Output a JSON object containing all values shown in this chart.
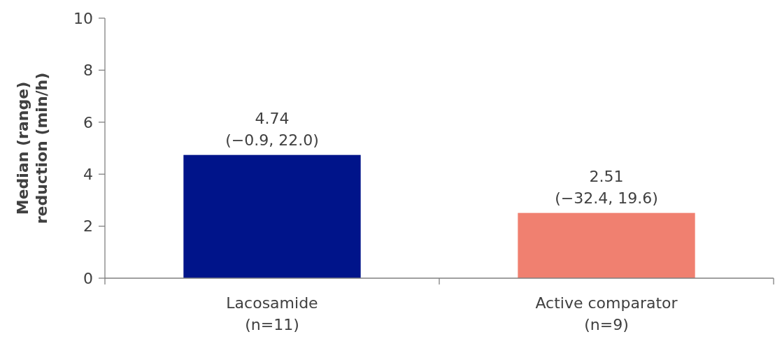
{
  "chart_data": {
    "type": "bar",
    "ylabel": "Median (range)\nreduction (min/h)",
    "categories": [
      "Lacosamide\n(n=11)",
      "Active comparator\n(n=9)"
    ],
    "values": [
      4.74,
      2.51
    ],
    "colors": [
      "#00148a",
      "#f08070"
    ],
    "value_labels": [
      "4.74\n(−0.9, 22.0)",
      "2.51\n(−32.4, 19.6)"
    ],
    "ylim": [
      0,
      10
    ],
    "yticks": [
      0,
      2,
      4,
      6,
      8,
      10
    ]
  }
}
